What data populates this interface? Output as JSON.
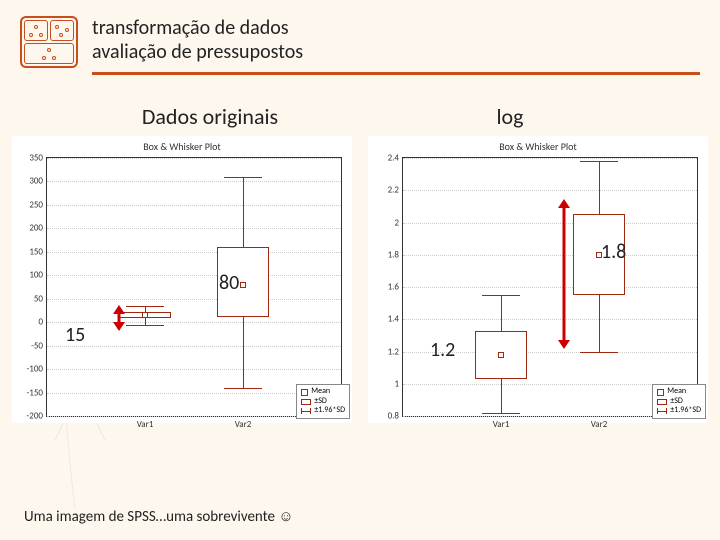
{
  "header": {
    "title_line1": "transformação de dados",
    "title_line2": "avaliação de pressupostos",
    "underline_color": "#c94e1c"
  },
  "left_label": "Dados originais",
  "right_label": "log",
  "footer": "Uma imagem de SPSS…uma sobrevivente ☺",
  "colors": {
    "accent": "#c94e1c",
    "box_stroke": "#a02810",
    "arrow": "#cc0000",
    "grid": "#cccccc",
    "text": "#222222",
    "page_bg": "#fdf7ee",
    "chart_bg": "#ffffff"
  },
  "chart_left": {
    "title": "Box & Whisker Plot",
    "type": "boxplot",
    "ylim": [
      -200,
      350
    ],
    "yticks": [
      -200,
      -150,
      -100,
      -50,
      0,
      50,
      100,
      150,
      200,
      250,
      300,
      350
    ],
    "categories": [
      "Var1",
      "Var2"
    ],
    "series": [
      {
        "mean": 15,
        "sd_low": 8,
        "sd_high": 22,
        "whisk_low": -5,
        "whisk_high": 35
      },
      {
        "mean": 80,
        "sd_low": 10,
        "sd_high": 160,
        "whisk_low": -140,
        "whisk_high": 310
      }
    ]
  },
  "chart_right": {
    "title": "Box & Whisker Plot",
    "type": "boxplot",
    "ylim": [
      0.8,
      2.4
    ],
    "yticks": [
      0.8,
      1.0,
      1.2,
      1.4,
      1.6,
      1.8,
      2.0,
      2.2,
      2.4
    ],
    "categories": [
      "Var1",
      "Var2"
    ],
    "series": [
      {
        "mean": 1.18,
        "sd_low": 1.03,
        "sd_high": 1.33,
        "whisk_low": 0.82,
        "whisk_high": 1.55
      },
      {
        "mean": 1.8,
        "sd_low": 1.55,
        "sd_high": 2.05,
        "whisk_low": 1.2,
        "whisk_high": 2.38
      }
    ]
  },
  "annotations": {
    "left_var2_value": "80",
    "left_var1_value": "15",
    "right_var2_value": "1.8",
    "right_var1_value": "1.2"
  },
  "legend": {
    "mean": "Mean",
    "sd": "±SD",
    "whisk": "±1.96*SD"
  },
  "font_sizes": {
    "title": 20,
    "col_label": 22,
    "annot": 20,
    "footer": 15,
    "chart_title": 10,
    "ticks": 9,
    "legend": 8
  }
}
